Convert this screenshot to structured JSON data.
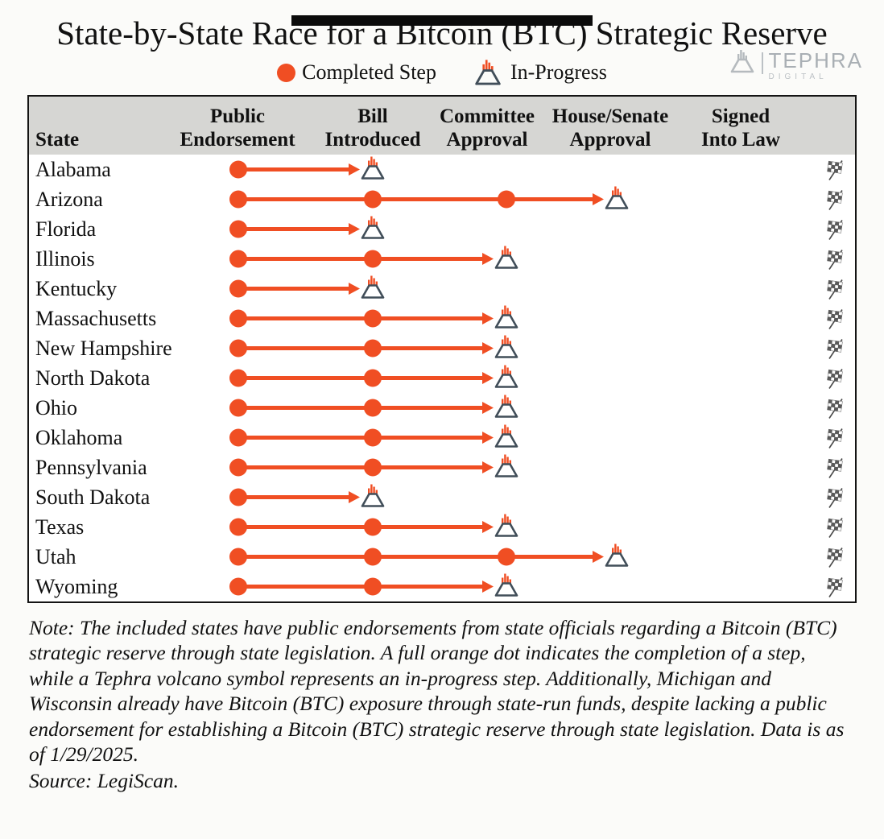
{
  "title": "State-by-State Race for a Bitcoin (BTC) Strategic Reserve",
  "legend": {
    "completed_label": "Completed Step",
    "in_progress_label": "In-Progress"
  },
  "logo": {
    "brand": "TEPHRA",
    "sub": "DIGITAL"
  },
  "colors": {
    "accent": "#f04e23",
    "volcano_outline": "#414e59",
    "header_bg": "#d6d6d3",
    "logo_gray": "#b5babe",
    "flag_gray": "#5a5a5a"
  },
  "chart_data": {
    "type": "table",
    "columns": [
      "State",
      "Public\nEndorsement",
      "Bill\nIntroduced",
      "Committee\nApproval",
      "House/Senate\nApproval",
      "Signed\nInto Law"
    ],
    "steps": [
      "Public Endorsement",
      "Bill Introduced",
      "Committee Approval",
      "House/Senate Approval",
      "Signed Into Law"
    ],
    "states": [
      {
        "name": "Alabama",
        "completed_steps": [
          "Public Endorsement"
        ],
        "in_progress": "Bill Introduced"
      },
      {
        "name": "Arizona",
        "completed_steps": [
          "Public Endorsement",
          "Bill Introduced",
          "Committee Approval"
        ],
        "in_progress": "House/Senate Approval"
      },
      {
        "name": "Florida",
        "completed_steps": [
          "Public Endorsement"
        ],
        "in_progress": "Bill Introduced"
      },
      {
        "name": "Illinois",
        "completed_steps": [
          "Public Endorsement",
          "Bill Introduced"
        ],
        "in_progress": "Committee Approval"
      },
      {
        "name": "Kentucky",
        "completed_steps": [
          "Public Endorsement"
        ],
        "in_progress": "Bill Introduced"
      },
      {
        "name": "Massachusetts",
        "completed_steps": [
          "Public Endorsement",
          "Bill Introduced"
        ],
        "in_progress": "Committee Approval"
      },
      {
        "name": "New Hampshire",
        "completed_steps": [
          "Public Endorsement",
          "Bill Introduced"
        ],
        "in_progress": "Committee Approval"
      },
      {
        "name": "North Dakota",
        "completed_steps": [
          "Public Endorsement",
          "Bill Introduced"
        ],
        "in_progress": "Committee Approval"
      },
      {
        "name": "Ohio",
        "completed_steps": [
          "Public Endorsement",
          "Bill Introduced"
        ],
        "in_progress": "Committee Approval"
      },
      {
        "name": "Oklahoma",
        "completed_steps": [
          "Public Endorsement",
          "Bill Introduced"
        ],
        "in_progress": "Committee Approval"
      },
      {
        "name": "Pennsylvania",
        "completed_steps": [
          "Public Endorsement",
          "Bill Introduced"
        ],
        "in_progress": "Committee Approval"
      },
      {
        "name": "South Dakota",
        "completed_steps": [
          "Public Endorsement"
        ],
        "in_progress": "Bill Introduced"
      },
      {
        "name": "Texas",
        "completed_steps": [
          "Public Endorsement",
          "Bill Introduced"
        ],
        "in_progress": "Committee Approval"
      },
      {
        "name": "Utah",
        "completed_steps": [
          "Public Endorsement",
          "Bill Introduced",
          "Committee Approval"
        ],
        "in_progress": "House/Senate Approval"
      },
      {
        "name": "Wyoming",
        "completed_steps": [
          "Public Endorsement",
          "Bill Introduced"
        ],
        "in_progress": "Committee Approval"
      }
    ]
  },
  "note": "Note: The included states have public endorsements from state officials regarding a Bitcoin (BTC) strategic reserve through state legislation. A full orange dot indicates the completion of a step, while a Tephra volcano symbol represents an in-progress step. Additionally, Michigan and Wisconsin already have Bitcoin (BTC) exposure through state-run funds, despite lacking a public endorsement for establishing a Bitcoin (BTC) strategic reserve through state legislation. Data is as of 1/29/2025.",
  "source": "Source: LegiScan."
}
